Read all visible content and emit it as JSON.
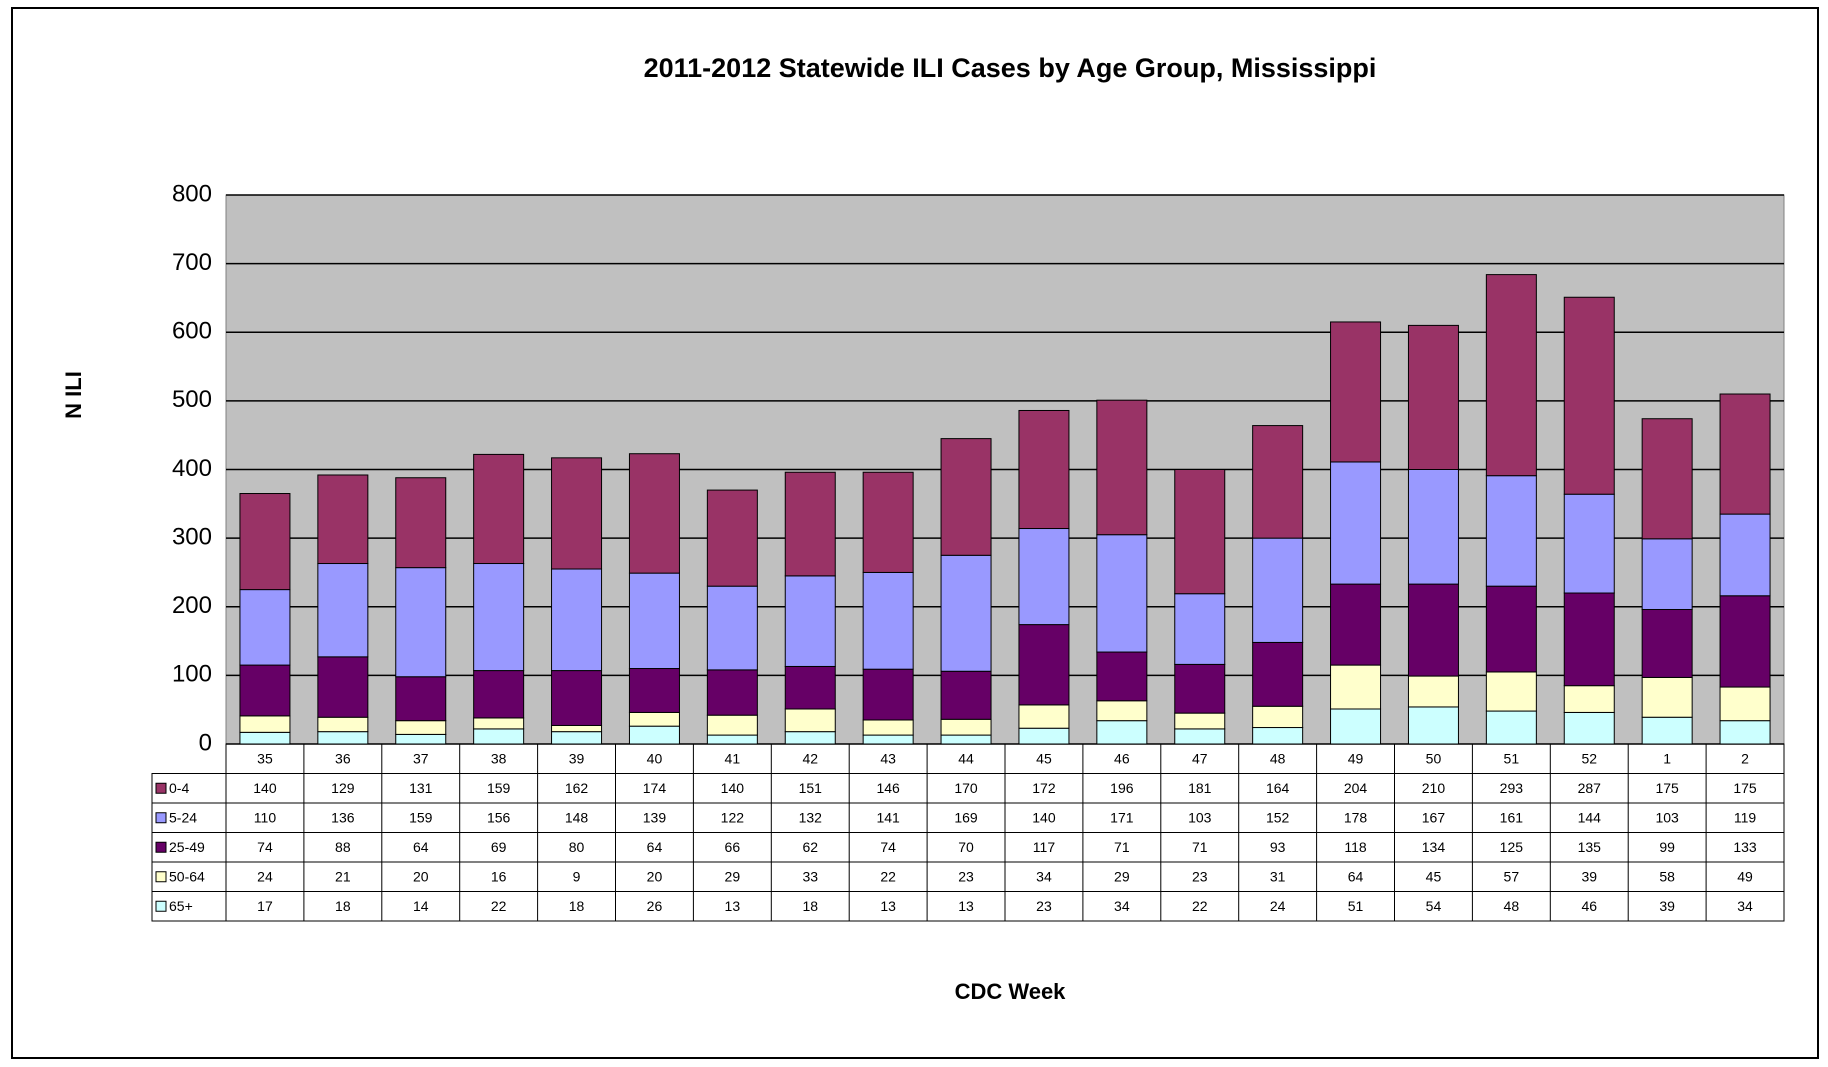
{
  "chart_data": {
    "type": "bar",
    "stacked": true,
    "title": "2011-2012 Statewide ILI Cases by Age Group, Mississippi",
    "x_label": "CDC Week",
    "y_label": "N ILI",
    "categories": [
      "35",
      "36",
      "37",
      "38",
      "39",
      "40",
      "41",
      "42",
      "43",
      "44",
      "45",
      "46",
      "47",
      "48",
      "49",
      "50",
      "51",
      "52",
      "1",
      "2"
    ],
    "series": [
      {
        "name": "0-4",
        "color": "#993366",
        "values": [
          140,
          129,
          131,
          159,
          162,
          174,
          140,
          151,
          146,
          170,
          172,
          196,
          181,
          164,
          204,
          210,
          293,
          287,
          175,
          175
        ]
      },
      {
        "name": "5-24",
        "color": "#9999FF",
        "values": [
          110,
          136,
          159,
          156,
          148,
          139,
          122,
          132,
          141,
          169,
          140,
          171,
          103,
          152,
          178,
          167,
          161,
          144,
          103,
          119
        ]
      },
      {
        "name": "25-49",
        "color": "#660066",
        "values": [
          74,
          88,
          64,
          69,
          80,
          64,
          66,
          62,
          74,
          70,
          117,
          71,
          71,
          93,
          118,
          134,
          125,
          135,
          99,
          133
        ]
      },
      {
        "name": "50-64",
        "color": "#FFFFCC",
        "values": [
          24,
          21,
          20,
          16,
          9,
          20,
          29,
          33,
          22,
          23,
          34,
          29,
          23,
          31,
          64,
          45,
          57,
          39,
          58,
          49
        ]
      },
      {
        "name": "65+",
        "color": "#CCFFFF",
        "values": [
          17,
          18,
          14,
          22,
          18,
          26,
          13,
          18,
          13,
          13,
          23,
          34,
          22,
          24,
          51,
          54,
          48,
          46,
          39,
          34
        ]
      }
    ],
    "ylim": [
      0,
      800
    ],
    "yticks": [
      0,
      100,
      200,
      300,
      400,
      500,
      600,
      700,
      800
    ],
    "grid": true,
    "plot_background": "#C0C0C0"
  }
}
